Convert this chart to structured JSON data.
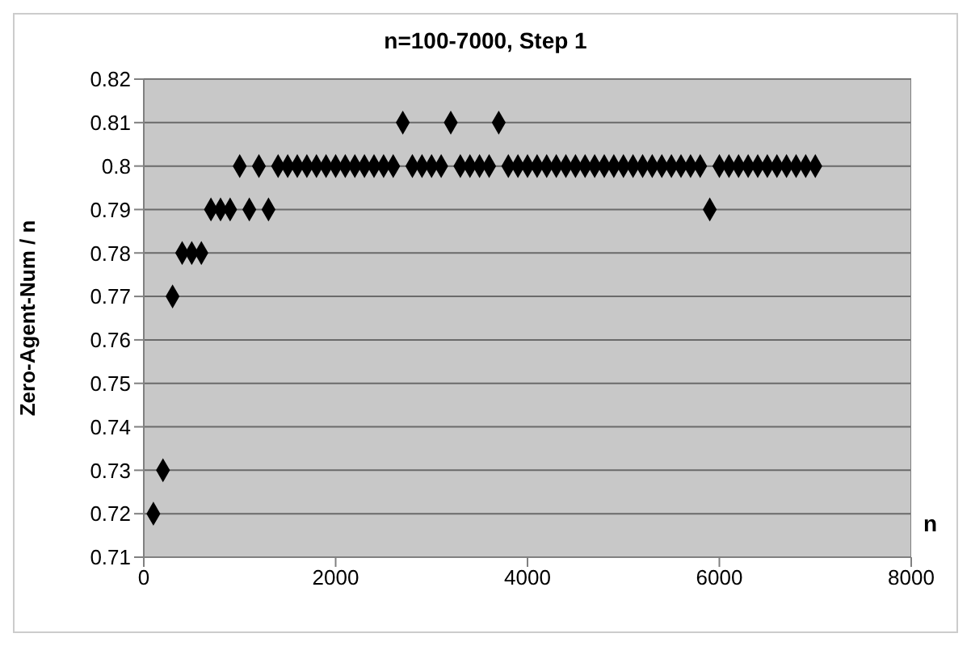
{
  "chart_data": {
    "type": "scatter",
    "title": "n=100-7000, Step 1",
    "xlabel": "n",
    "ylabel": "Zero-Agent-Num / n",
    "x": [
      100,
      200,
      300,
      400,
      500,
      600,
      700,
      800,
      900,
      1000,
      1100,
      1200,
      1300,
      1400,
      1500,
      1600,
      1700,
      1800,
      1900,
      2000,
      2100,
      2200,
      2300,
      2400,
      2500,
      2600,
      2700,
      2800,
      2900,
      3000,
      3100,
      3200,
      3300,
      3400,
      3500,
      3600,
      3700,
      3800,
      3900,
      4000,
      4100,
      4200,
      4300,
      4400,
      4500,
      4600,
      4700,
      4800,
      4900,
      5000,
      5100,
      5200,
      5300,
      5400,
      5500,
      5600,
      5700,
      5800,
      5900,
      6000,
      6100,
      6200,
      6300,
      6400,
      6500,
      6600,
      6700,
      6800,
      6900,
      7000
    ],
    "series": [
      {
        "color": "#000000",
        "values": [
          0.72,
          0.73,
          0.77,
          0.78,
          0.78,
          0.78,
          0.79,
          0.79,
          0.79,
          0.8,
          0.79,
          0.8,
          0.79,
          0.8,
          0.8,
          0.8,
          0.8,
          0.8,
          0.8,
          0.8,
          0.8,
          0.8,
          0.8,
          0.8,
          0.8,
          0.8,
          0.81,
          0.8,
          0.8,
          0.8,
          0.8,
          0.81,
          0.8,
          0.8,
          0.8,
          0.8,
          0.81,
          0.8,
          0.8,
          0.8,
          0.8,
          0.8,
          0.8,
          0.8,
          0.8,
          0.8,
          0.8,
          0.8,
          0.8,
          0.8,
          0.8,
          0.8,
          0.8,
          0.8,
          0.8,
          0.8,
          0.8,
          0.8,
          0.79,
          0.8,
          0.8,
          0.8,
          0.8,
          0.8,
          0.8,
          0.8,
          0.8,
          0.8,
          0.8,
          0.8
        ]
      }
    ],
    "xlim": [
      0,
      8000
    ],
    "xticks": [
      0,
      2000,
      4000,
      6000,
      8000
    ],
    "ylim": [
      0.71,
      0.82
    ],
    "yticks": [
      0.71,
      0.72,
      0.73,
      0.74,
      0.75,
      0.76,
      0.77,
      0.78,
      0.79,
      0.8,
      0.81,
      0.82
    ],
    "grid": "y",
    "marker": "diamond",
    "legend": false
  }
}
